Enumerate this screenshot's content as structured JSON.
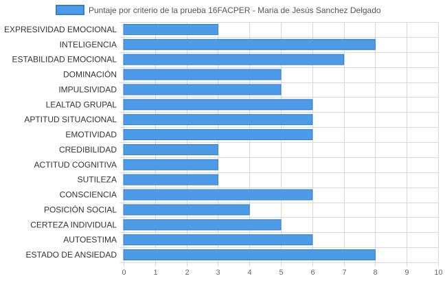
{
  "chart_data": {
    "type": "bar",
    "orientation": "horizontal",
    "categories": [
      "EXPRESIVIDAD EMOCIONAL",
      "INTELIGENCIA",
      "ESTABILIDAD EMOCIONAL",
      "DOMINACIÓN",
      "IMPULSIVIDAD",
      "LEALTAD GRUPAL",
      "APTITUD SITUACIONAL",
      "EMOTIVIDAD",
      "CREDIBILIDAD",
      "ACTITUD COGNITIVA",
      "SUTILEZA",
      "CONSCIENCIA",
      "POSICIÓN SOCIAL",
      "CERTEZA INDIVIDUAL",
      "AUTOESTIMA",
      "ESTADO DE ANSIEDAD"
    ],
    "series": [
      {
        "name": "Puntaje por criterio de la prueba 16FACPER - Maria de Jesús Sanchez Delgado",
        "values": [
          3,
          8,
          7,
          5,
          5,
          6,
          6,
          6,
          3,
          3,
          3,
          6,
          4,
          5,
          6,
          8
        ]
      }
    ],
    "xlim": [
      0,
      10
    ],
    "xticks": [
      "0",
      "1",
      "2",
      "3",
      "4",
      "5",
      "6",
      "7",
      "8",
      "9",
      "10"
    ],
    "grid": true,
    "legend_position": "top-center",
    "colors": {
      "bar_fill": "#4d9be6",
      "bar_stroke": "#2f7fd6",
      "grid": "#d9d9d9",
      "axis_text": "#666666",
      "label_text": "#333333"
    }
  }
}
